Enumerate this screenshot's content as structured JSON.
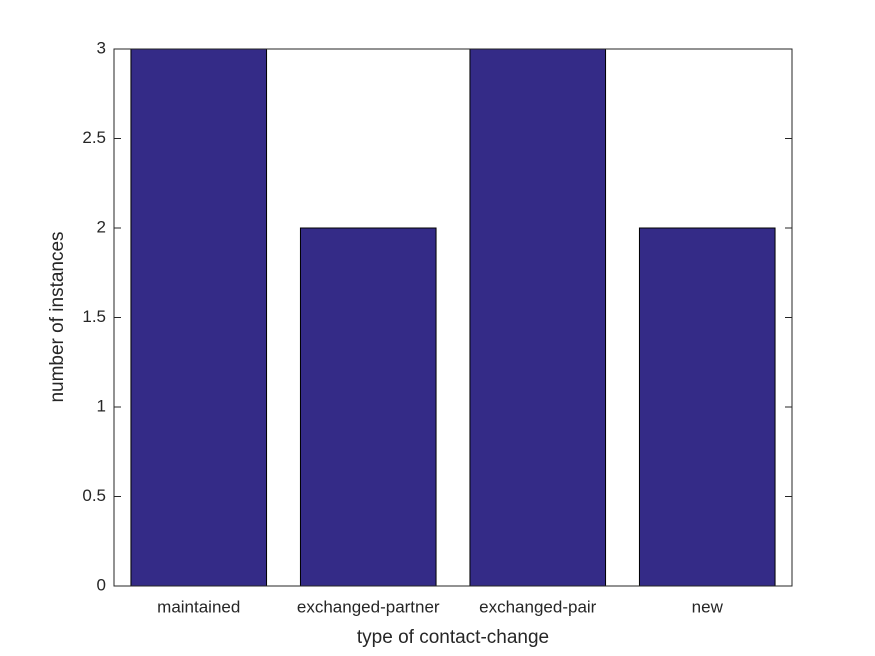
{
  "chart_data": {
    "type": "bar",
    "x_label": "type of contact-change",
    "y_label": "number of instances",
    "categories": [
      "maintained",
      "exchanged-partner",
      "exchanged-pair",
      "new"
    ],
    "values": [
      3,
      2,
      3,
      2
    ],
    "color": "#342b87",
    "ylim": [
      0,
      3
    ],
    "yticks": [
      0,
      0.5,
      1,
      1.5,
      2,
      2.5,
      3
    ],
    "grid": false
  }
}
